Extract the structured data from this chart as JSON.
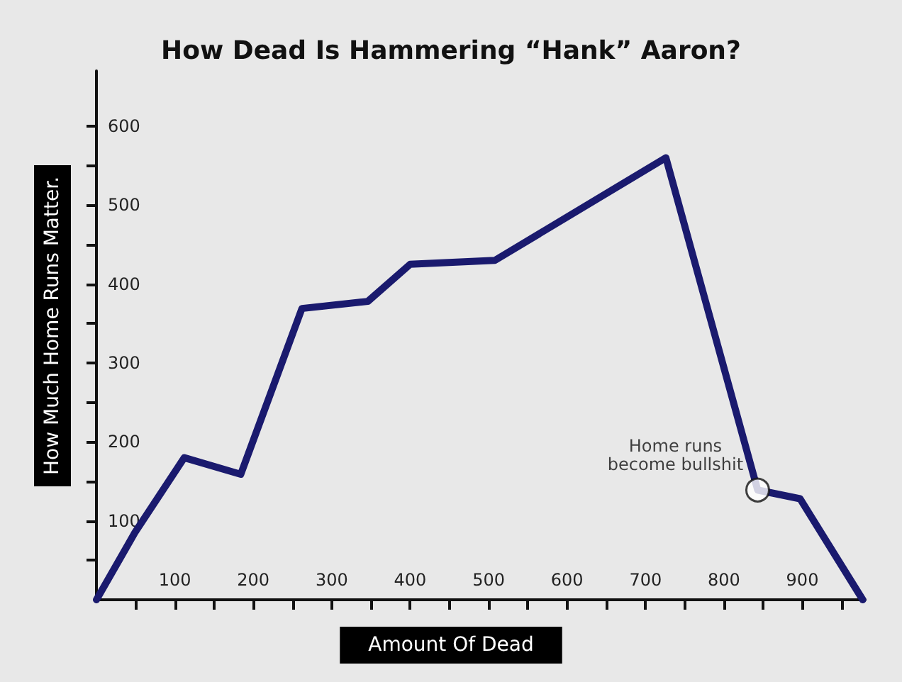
{
  "chart_data": {
    "type": "line",
    "title": "How Dead Is Hammering “Hank” Aaron?",
    "xlabel": "Amount Of Dead",
    "ylabel": "How Much Home Runs Matter.",
    "x": [
      0,
      49,
      112,
      184,
      262,
      346,
      400,
      508,
      726,
      843,
      897,
      977
    ],
    "series": [
      {
        "color": "#1a1a6e",
        "values": [
          0,
          85,
          180,
          159,
          369,
          378,
          425,
          430,
          560,
          139,
          128,
          0
        ]
      }
    ],
    "xlim": [
      0,
      980
    ],
    "xticks": [
      {
        "value": 50,
        "label": null
      },
      100,
      {
        "value": 150,
        "label": null
      },
      200,
      {
        "value": 250,
        "label": null
      },
      300,
      {
        "value": 350,
        "label": null
      },
      400,
      {
        "value": 450,
        "label": null
      },
      500,
      {
        "value": 550,
        "label": null
      },
      600,
      {
        "value": 650,
        "label": null
      },
      700,
      {
        "value": 750,
        "label": null
      },
      800,
      {
        "value": 850,
        "label": null
      },
      900,
      {
        "value": 950,
        "label": null
      }
    ],
    "ylim": [
      0,
      670
    ],
    "yticks": [
      {
        "value": 50,
        "label": null
      },
      100,
      {
        "value": 150,
        "label": null
      },
      200,
      {
        "value": 250,
        "label": null
      },
      300,
      {
        "value": 350,
        "label": null
      },
      400,
      {
        "value": 450,
        "label": null
      },
      500,
      {
        "value": 550,
        "label": null
      },
      600
    ],
    "annotations": [
      {
        "text": "Home runs\nbecome bullshit",
        "x": 843,
        "y": 139
      }
    ],
    "grid": false,
    "marker": "none",
    "line_style": "solid"
  }
}
